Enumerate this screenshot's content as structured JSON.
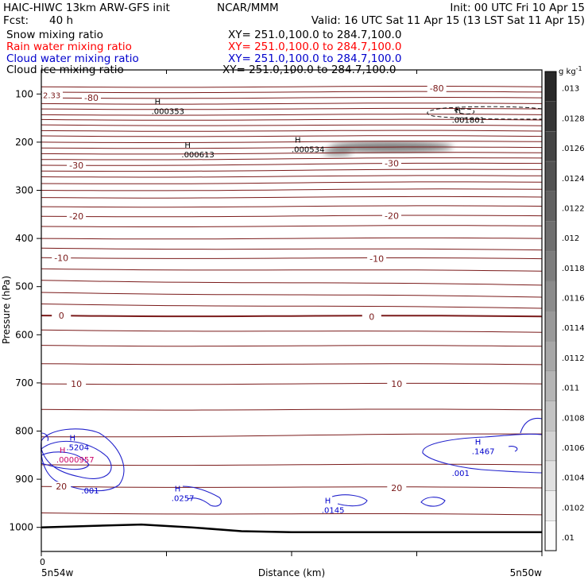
{
  "header": {
    "model": "HAIC-HIWC 13km ARW-GFS init",
    "org": "NCAR/MMM",
    "init": "Init: 00 UTC Fri 10 Apr 15",
    "fcst_label": "Fcst:",
    "fcst_value": "40 h",
    "valid": "Valid: 16 UTC Sat 11 Apr 15 (13 LST Sat 11 Apr 15)"
  },
  "fields": [
    {
      "name": "Snow mixing ratio",
      "xy": "XY= 251.0,100.0 to 284.7,100.0",
      "color": "#000000"
    },
    {
      "name": "Rain water mixing ratio",
      "xy": "XY= 251.0,100.0 to 284.7,100.0",
      "color": "#ff0000"
    },
    {
      "name": "Cloud water mixing ratio",
      "xy": "XY= 251.0,100.0 to 284.7,100.0",
      "color": "#0000cc"
    },
    {
      "name": "Cloud ice mixing ratio",
      "xy": "XY= 251.0,100.0 to 284.7,100.0",
      "color": "#000000"
    }
  ],
  "chart_data": {
    "type": "contour",
    "xlabel": "Distance (km)",
    "ylabel": "Pressure (hPa)",
    "x_start_label": "0",
    "x_left_label": "5n54w",
    "x_right_label": "5n50w",
    "x_points": 5,
    "y_ticks": [
      100,
      200,
      300,
      400,
      500,
      600,
      700,
      800,
      900,
      1000
    ],
    "ylim": [
      1050,
      50
    ],
    "colorbar": {
      "unit": "g kg",
      "unit_exp": "-1",
      "labels": [
        ".013",
        ".0128",
        ".0126",
        ".0124",
        ".0122",
        ".012",
        ".0118",
        ".0116",
        ".0114",
        ".0112",
        ".011",
        ".0108",
        ".0106",
        ".0104",
        ".0102",
        ".01"
      ]
    },
    "temperature_labels": [
      {
        "text": "-80",
        "x": 0.1,
        "p": 108,
        "pr": 108
      },
      {
        "text": "-80",
        "x": 0.79,
        "p": 88,
        "pr": 88
      },
      {
        "text": "-30",
        "x": 0.07,
        "p": 248,
        "pr": 248
      },
      {
        "text": "-30",
        "x": 0.7,
        "p": 244,
        "pr": 244
      },
      {
        "text": "-20",
        "x": 0.07,
        "p": 354,
        "pr": 354
      },
      {
        "text": "-20",
        "x": 0.7,
        "p": 353,
        "pr": 353
      },
      {
        "text": "-10",
        "x": 0.04,
        "p": 440,
        "pr": 440
      },
      {
        "text": "-10",
        "x": 0.67,
        "p": 442,
        "pr": 442
      },
      {
        "text": "0",
        "x": 0.04,
        "p": 560,
        "pr": 560
      },
      {
        "text": "0",
        "x": 0.66,
        "p": 562,
        "pr": 562
      },
      {
        "text": "10",
        "x": 0.07,
        "p": 702,
        "pr": 702
      },
      {
        "text": "10",
        "x": 0.71,
        "p": 702,
        "pr": 702
      },
      {
        "text": "20",
        "x": 0.04,
        "p": 915,
        "pr": 915
      },
      {
        "text": "20",
        "x": 0.71,
        "p": 918,
        "pr": 918
      }
    ],
    "left_edge_label": {
      "text": "2.33",
      "p": 102
    },
    "isotherms": [
      {
        "p": 85,
        "pr": 85
      },
      {
        "p": 96,
        "pr": 96
      },
      {
        "p": 108,
        "pr": 108
      },
      {
        "p": 120,
        "pr": 120
      },
      {
        "p": 131,
        "pr": 131
      },
      {
        "p": 143,
        "pr": 143
      },
      {
        "p": 153,
        "pr": 154
      },
      {
        "p": 164,
        "pr": 166
      },
      {
        "p": 176,
        "pr": 177
      },
      {
        "p": 187,
        "pr": 188
      },
      {
        "p": 200,
        "pr": 199
      },
      {
        "p": 212,
        "pr": 211
      },
      {
        "p": 224,
        "pr": 222
      },
      {
        "p": 236,
        "pr": 233
      },
      {
        "p": 248,
        "pr": 244
      },
      {
        "p": 260,
        "pr": 257
      },
      {
        "p": 272,
        "pr": 270
      },
      {
        "p": 286,
        "pr": 283
      },
      {
        "p": 300,
        "pr": 298
      },
      {
        "p": 315,
        "pr": 314
      },
      {
        "p": 334,
        "pr": 333
      },
      {
        "p": 354,
        "pr": 353
      },
      {
        "p": 375,
        "pr": 374
      },
      {
        "p": 400,
        "pr": 400
      },
      {
        "p": 420,
        "pr": 424
      },
      {
        "p": 440,
        "pr": 442
      },
      {
        "p": 463,
        "pr": 468
      },
      {
        "p": 487,
        "pr": 497
      },
      {
        "p": 512,
        "pr": 522
      },
      {
        "p": 536,
        "pr": 545
      },
      {
        "p": 560,
        "pr": 562,
        "bold": true
      },
      {
        "p": 590,
        "pr": 595
      },
      {
        "p": 622,
        "pr": 624
      },
      {
        "p": 660,
        "pr": 662
      },
      {
        "p": 702,
        "pr": 702
      },
      {
        "p": 755,
        "pr": 756
      },
      {
        "p": 812,
        "pr": 806
      },
      {
        "p": 870,
        "pr": 870
      },
      {
        "p": 915,
        "pr": 918
      },
      {
        "p": 970,
        "pr": 974
      }
    ],
    "maxima": [
      {
        "text": ".000353",
        "x": 0.22,
        "p": 132
      },
      {
        "text": ".000613",
        "x": 0.28,
        "p": 222
      },
      {
        "text": ".000534",
        "x": 0.5,
        "p": 211
      },
      {
        "text": ".001801",
        "x": 0.82,
        "p": 150
      },
      {
        "text": ".5204",
        "x": 0.05,
        "p": 830,
        "color": "#0000cc"
      },
      {
        "text": ".0000957",
        "x": 0.03,
        "p": 855,
        "color": "#cc0066"
      },
      {
        "text": ".0257",
        "x": 0.26,
        "p": 935,
        "color": "#0000cc"
      },
      {
        "text": ".0145",
        "x": 0.56,
        "p": 960,
        "color": "#0000cc"
      },
      {
        "text": ".1467",
        "x": 0.86,
        "p": 838,
        "color": "#0000cc"
      }
    ],
    "cloud_water_labels": [
      {
        "text": ".001",
        "x": 0.08,
        "p": 923
      },
      {
        "text": ".001",
        "x": 0.82,
        "p": 887
      }
    ],
    "surface": [
      [
        0,
        1000
      ],
      [
        0.1,
        997
      ],
      [
        0.2,
        994
      ],
      [
        0.3,
        1000
      ],
      [
        0.4,
        1008
      ],
      [
        0.5,
        1010
      ],
      [
        0.6,
        1010
      ],
      [
        0.7,
        1010
      ],
      [
        0.8,
        1010
      ],
      [
        0.9,
        1010
      ],
      [
        1,
        1010
      ]
    ]
  }
}
